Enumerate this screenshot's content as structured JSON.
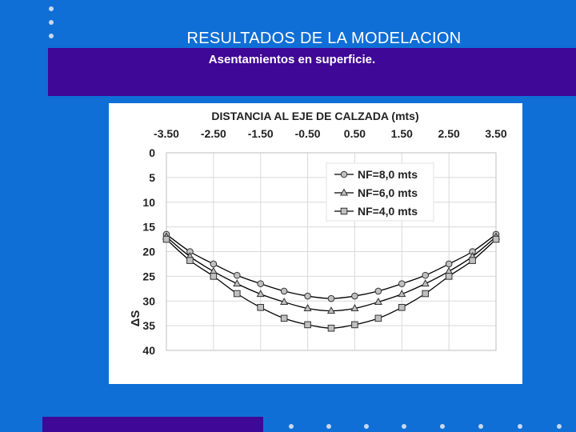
{
  "slide": {
    "title": "RESULTADOS DE LA MODELACION",
    "subtitle": "Asentamientos en superficie."
  },
  "colors": {
    "background": "#0f6fd6",
    "band": "#3f0896",
    "marker_fill": "#c0c0c0",
    "line": "#000000"
  },
  "chart_data": {
    "type": "line",
    "title": "DISTANCIA AL EJE DE CALZADA (mts)",
    "xlabel": "",
    "ylabel": "ΔS",
    "x_ticks": [
      "-3.50",
      "-2.50",
      "-1.50",
      "-0.50",
      "0.50",
      "1.50",
      "2.50",
      "3.50"
    ],
    "y_ticks": [
      "0",
      "5",
      "10",
      "15",
      "20",
      "25",
      "30",
      "35",
      "40"
    ],
    "xlim": [
      -3.5,
      3.5
    ],
    "ylim": [
      0,
      40
    ],
    "y_inverted": true,
    "x_axis_position": "top",
    "grid": true,
    "legend_position": "top-right",
    "x": [
      -3.5,
      -3.0,
      -2.5,
      -2.0,
      -1.5,
      -1.0,
      -0.5,
      0.0,
      0.5,
      1.0,
      1.5,
      2.0,
      2.5,
      3.0,
      3.5
    ],
    "series": [
      {
        "name": "NF=8,0 mts",
        "marker": "circle",
        "values": [
          16.5,
          20.0,
          22.5,
          24.8,
          26.5,
          28.0,
          29.0,
          29.5,
          29.0,
          28.0,
          26.5,
          24.8,
          22.5,
          20.0,
          16.5
        ]
      },
      {
        "name": "NF=6,0 mts",
        "marker": "triangle",
        "values": [
          17.0,
          21.0,
          24.0,
          26.5,
          28.6,
          30.2,
          31.5,
          32.0,
          31.5,
          30.2,
          28.6,
          26.5,
          24.0,
          21.0,
          17.0
        ]
      },
      {
        "name": "NF=4,0 mts",
        "marker": "square",
        "values": [
          17.5,
          21.8,
          25.0,
          28.5,
          31.3,
          33.5,
          34.8,
          35.5,
          34.8,
          33.5,
          31.3,
          28.5,
          25.0,
          21.8,
          17.5
        ]
      }
    ]
  }
}
